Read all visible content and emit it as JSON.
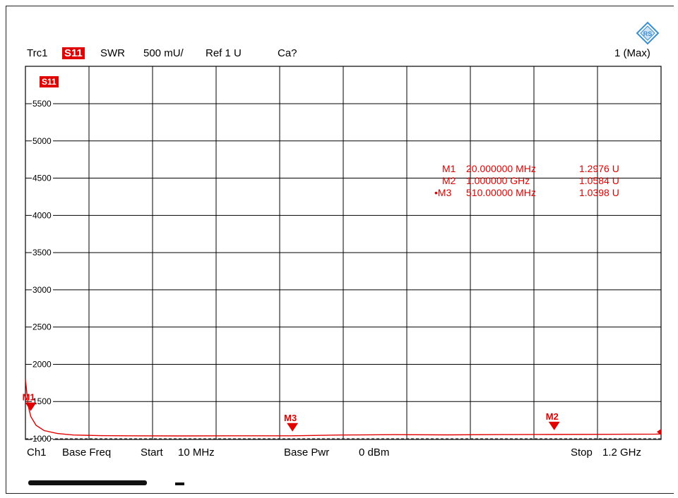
{
  "header": {
    "trace": "Trc1",
    "param": "S11",
    "format": "SWR",
    "scale": "500 mU/",
    "ref": "Ref 1 U",
    "cal": "Ca?",
    "right": "1 (Max)"
  },
  "trace_label": "S11",
  "footer": {
    "channel": "Ch1",
    "base_freq": "Base Freq",
    "start_label": "Start",
    "start_value": "10 MHz",
    "base_pwr": "Base Pwr",
    "pwr_value": "0 dBm",
    "stop_label": "Stop",
    "stop_value": "1.2 GHz"
  },
  "markers_table": [
    {
      "name": "M1",
      "freq": "20.000000 MHz",
      "value": "1.2976 U",
      "active": false
    },
    {
      "name": "M2",
      "freq": "1.000000 GHz",
      "value": "1.0584 U",
      "active": false
    },
    {
      "name": "M3",
      "freq": "510.00000 MHz",
      "value": "1.0398 U",
      "active": true
    }
  ],
  "colors": {
    "trace": "#e00000",
    "grid": "#000000",
    "logo": "#3a8fd0"
  },
  "logo_icon": "rohde-schwarz-logo",
  "chart_data": {
    "type": "line",
    "xlabel": "",
    "ylabel": "",
    "xlim": [
      10,
      1200
    ],
    "ylim": [
      1000,
      5500
    ],
    "y_ticks": [
      1000,
      1500,
      2000,
      2500,
      3000,
      3500,
      4000,
      4500,
      5000,
      5500
    ],
    "grid": true,
    "series": [
      {
        "name": "S11",
        "x": [
          10,
          15,
          20,
          30,
          45,
          70,
          100,
          150,
          200,
          300,
          400,
          510,
          600,
          700,
          800,
          900,
          1000,
          1100,
          1190,
          1200
        ],
        "y": [
          1800,
          1450,
          1300,
          1180,
          1110,
          1070,
          1050,
          1042,
          1040,
          1038,
          1040,
          1040,
          1050,
          1055,
          1052,
          1056,
          1058,
          1060,
          1062,
          1065
        ]
      }
    ],
    "markers": [
      {
        "name": "M1",
        "x": 20,
        "y": 1297.6
      },
      {
        "name": "M2",
        "x": 1000,
        "y": 1058.4
      },
      {
        "name": "M3",
        "x": 510,
        "y": 1039.8
      }
    ]
  }
}
